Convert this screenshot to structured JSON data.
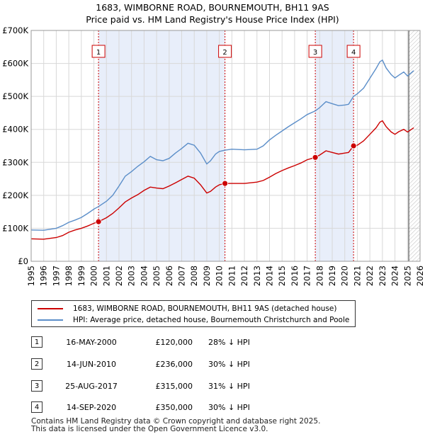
{
  "header": {
    "title_line1": "1683, WIMBORNE ROAD, BOURNEMOUTH, BH11 9AS",
    "title_line2": "Price paid vs. HM Land Registry's House Price Index (HPI)"
  },
  "colors": {
    "price_line": "#cc0000",
    "hpi_line": "#5b8ec9",
    "shade": "#e8eefa",
    "grid": "#d8d8d8",
    "vline": "#cc0000"
  },
  "chart_data": {
    "type": "line",
    "title": "Price paid vs. HM Land Registry's House Price Index (HPI)",
    "xlabel": "",
    "ylabel": "",
    "xlim": [
      1995,
      2026
    ],
    "ylim": [
      0,
      700000
    ],
    "x_ticks": [
      "1995",
      "1996",
      "1997",
      "1998",
      "1999",
      "2000",
      "2001",
      "2002",
      "2003",
      "2004",
      "2005",
      "2006",
      "2007",
      "2008",
      "2009",
      "2010",
      "2011",
      "2012",
      "2013",
      "2014",
      "2015",
      "2016",
      "2017",
      "2018",
      "2019",
      "2020",
      "2021",
      "2022",
      "2023",
      "2024",
      "2025",
      "2026"
    ],
    "y_ticks": [
      {
        "value": 0,
        "label": "£0"
      },
      {
        "value": 100000,
        "label": "£100K"
      },
      {
        "value": 200000,
        "label": "£200K"
      },
      {
        "value": 300000,
        "label": "£300K"
      },
      {
        "value": 400000,
        "label": "£400K"
      },
      {
        "value": 500000,
        "label": "£500K"
      },
      {
        "value": 600000,
        "label": "£600K"
      },
      {
        "value": 700000,
        "label": "£700K"
      }
    ],
    "shaded_ranges": [
      [
        2000.37,
        2010.45
      ],
      [
        2017.65,
        2020.7
      ]
    ],
    "forecast_start": 2025.1,
    "series": [
      {
        "name": "1683, WIMBORNE ROAD, BOURNEMOUTH, BH11 9AS (detached house)",
        "color_key": "price_line",
        "points": [
          [
            1995,
            68000
          ],
          [
            1996,
            67000
          ],
          [
            1997,
            72000
          ],
          [
            1997.5,
            78000
          ],
          [
            1998,
            88000
          ],
          [
            1998.5,
            95000
          ],
          [
            1999,
            100000
          ],
          [
            1999.5,
            107000
          ],
          [
            2000,
            115000
          ],
          [
            2000.37,
            120000
          ],
          [
            2001,
            132000
          ],
          [
            2001.5,
            145000
          ],
          [
            2002,
            162000
          ],
          [
            2002.5,
            180000
          ],
          [
            2003,
            192000
          ],
          [
            2003.5,
            202000
          ],
          [
            2004,
            215000
          ],
          [
            2004.5,
            225000
          ],
          [
            2005,
            222000
          ],
          [
            2005.5,
            220000
          ],
          [
            2006,
            228000
          ],
          [
            2006.5,
            238000
          ],
          [
            2007,
            248000
          ],
          [
            2007.5,
            258000
          ],
          [
            2008,
            252000
          ],
          [
            2008.5,
            232000
          ],
          [
            2009,
            207000
          ],
          [
            2009.3,
            212000
          ],
          [
            2009.7,
            225000
          ],
          [
            2010,
            232000
          ],
          [
            2010.45,
            236000
          ],
          [
            2011,
            236000
          ],
          [
            2012,
            236000
          ],
          [
            2013,
            240000
          ],
          [
            2013.5,
            245000
          ],
          [
            2014,
            255000
          ],
          [
            2014.5,
            266000
          ],
          [
            2015,
            275000
          ],
          [
            2015.5,
            283000
          ],
          [
            2016,
            290000
          ],
          [
            2016.5,
            298000
          ],
          [
            2017,
            308000
          ],
          [
            2017.65,
            315000
          ],
          [
            2018,
            322000
          ],
          [
            2018.5,
            335000
          ],
          [
            2019,
            330000
          ],
          [
            2019.5,
            325000
          ],
          [
            2020,
            328000
          ],
          [
            2020.3,
            330000
          ],
          [
            2020.7,
            350000
          ],
          [
            2021,
            352000
          ],
          [
            2021.5,
            365000
          ],
          [
            2022,
            385000
          ],
          [
            2022.5,
            405000
          ],
          [
            2022.8,
            422000
          ],
          [
            2023,
            426000
          ],
          [
            2023.3,
            408000
          ],
          [
            2023.7,
            392000
          ],
          [
            2024,
            385000
          ],
          [
            2024.3,
            393000
          ],
          [
            2024.7,
            400000
          ],
          [
            2025,
            392000
          ],
          [
            2025.5,
            405000
          ]
        ]
      },
      {
        "name": "HPI: Average price, detached house, Bournemouth Christchurch and Poole",
        "color_key": "hpi_line",
        "points": [
          [
            1995,
            95000
          ],
          [
            1996,
            94000
          ],
          [
            1997,
            100000
          ],
          [
            1997.5,
            108000
          ],
          [
            1998,
            118000
          ],
          [
            1998.5,
            125000
          ],
          [
            1999,
            133000
          ],
          [
            1999.5,
            145000
          ],
          [
            2000,
            158000
          ],
          [
            2000.37,
            166000
          ],
          [
            2001,
            182000
          ],
          [
            2001.5,
            200000
          ],
          [
            2002,
            228000
          ],
          [
            2002.5,
            258000
          ],
          [
            2003,
            272000
          ],
          [
            2003.5,
            288000
          ],
          [
            2004,
            302000
          ],
          [
            2004.5,
            318000
          ],
          [
            2005,
            308000
          ],
          [
            2005.5,
            305000
          ],
          [
            2006,
            312000
          ],
          [
            2006.5,
            328000
          ],
          [
            2007,
            342000
          ],
          [
            2007.5,
            358000
          ],
          [
            2008,
            352000
          ],
          [
            2008.5,
            328000
          ],
          [
            2009,
            295000
          ],
          [
            2009.3,
            305000
          ],
          [
            2009.7,
            325000
          ],
          [
            2010,
            333000
          ],
          [
            2010.45,
            337000
          ],
          [
            2011,
            340000
          ],
          [
            2012,
            338000
          ],
          [
            2013,
            340000
          ],
          [
            2013.5,
            350000
          ],
          [
            2014,
            368000
          ],
          [
            2014.5,
            382000
          ],
          [
            2015,
            395000
          ],
          [
            2015.5,
            408000
          ],
          [
            2016,
            420000
          ],
          [
            2016.5,
            432000
          ],
          [
            2017,
            445000
          ],
          [
            2017.65,
            456000
          ],
          [
            2018,
            466000
          ],
          [
            2018.5,
            484000
          ],
          [
            2019,
            478000
          ],
          [
            2019.5,
            472000
          ],
          [
            2020,
            474000
          ],
          [
            2020.3,
            476000
          ],
          [
            2020.7,
            500000
          ],
          [
            2021,
            508000
          ],
          [
            2021.5,
            525000
          ],
          [
            2022,
            555000
          ],
          [
            2022.5,
            585000
          ],
          [
            2022.8,
            605000
          ],
          [
            2023,
            610000
          ],
          [
            2023.3,
            586000
          ],
          [
            2023.7,
            566000
          ],
          [
            2024,
            556000
          ],
          [
            2024.3,
            564000
          ],
          [
            2024.7,
            574000
          ],
          [
            2025,
            562000
          ],
          [
            2025.5,
            578000
          ]
        ]
      }
    ],
    "sales": [
      {
        "marker": "1",
        "x": 2000.37,
        "price": 120000
      },
      {
        "marker": "2",
        "x": 2010.45,
        "price": 236000
      },
      {
        "marker": "3",
        "x": 2017.65,
        "price": 315000
      },
      {
        "marker": "4",
        "x": 2020.7,
        "price": 350000
      }
    ]
  },
  "legend": {
    "price_label": "1683, WIMBORNE ROAD, BOURNEMOUTH, BH11 9AS (detached house)",
    "hpi_label": "HPI: Average price, detached house, Bournemouth Christchurch and Poole"
  },
  "sales_table": [
    {
      "marker": "1",
      "date": "16-MAY-2000",
      "price": "£120,000",
      "pct": "28% ↓ HPI"
    },
    {
      "marker": "2",
      "date": "14-JUN-2010",
      "price": "£236,000",
      "pct": "30% ↓ HPI"
    },
    {
      "marker": "3",
      "date": "25-AUG-2017",
      "price": "£315,000",
      "pct": "31% ↓ HPI"
    },
    {
      "marker": "4",
      "date": "14-SEP-2020",
      "price": "£350,000",
      "pct": "30% ↓ HPI"
    }
  ],
  "footer": {
    "line1": "Contains HM Land Registry data © Crown copyright and database right 2025.",
    "line2": "This data is licensed under the Open Government Licence v3.0."
  }
}
